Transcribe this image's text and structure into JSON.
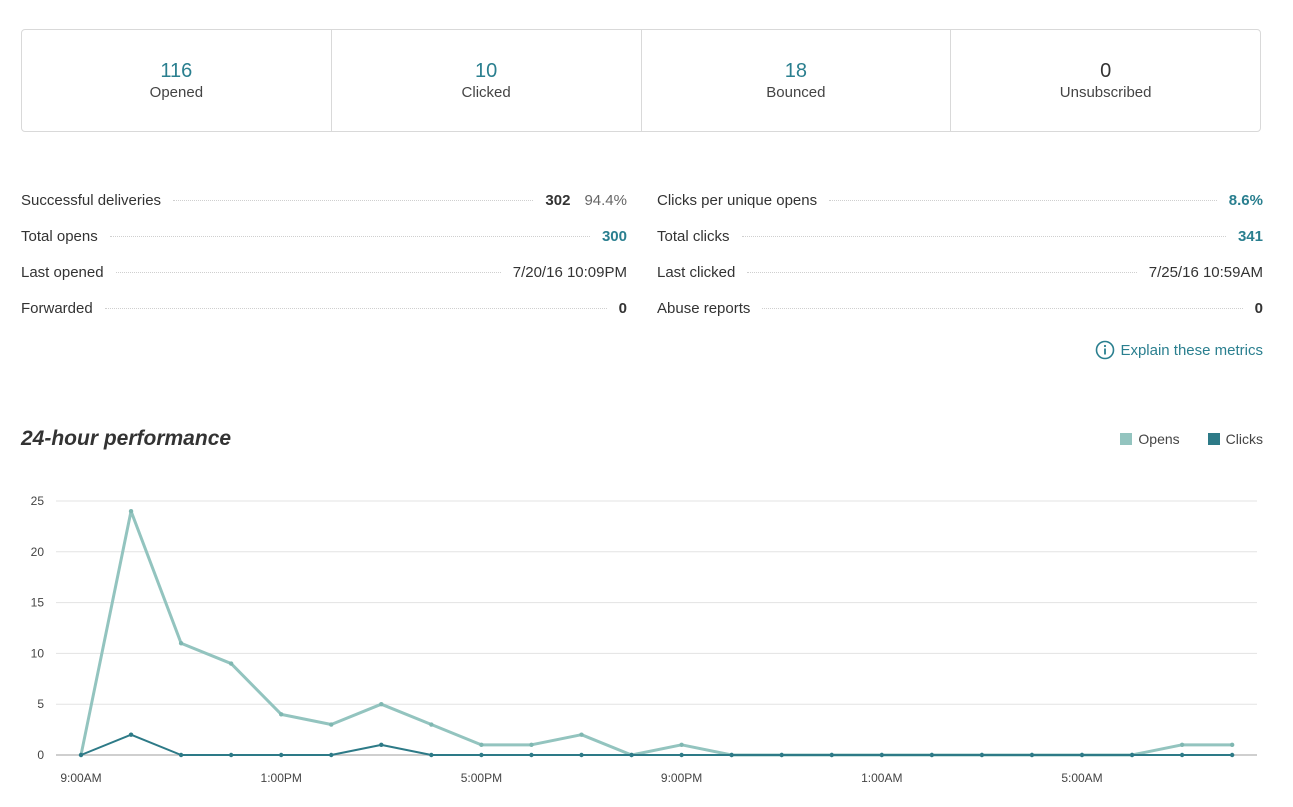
{
  "stats": [
    {
      "value": "116",
      "label": "Opened"
    },
    {
      "value": "10",
      "label": "Clicked"
    },
    {
      "value": "18",
      "label": "Bounced"
    },
    {
      "value": "0",
      "label": "Unsubscribed"
    }
  ],
  "metrics_left": [
    {
      "label": "Successful deliveries",
      "value": "302",
      "pct": "94.4%"
    },
    {
      "label": "Total opens",
      "value": "300"
    },
    {
      "label": "Last opened",
      "value": "7/20/16 10:09PM"
    },
    {
      "label": "Forwarded",
      "value": "0"
    }
  ],
  "metrics_right": [
    {
      "label": "Clicks per unique opens",
      "value": "8.6%"
    },
    {
      "label": "Total clicks",
      "value": "341"
    },
    {
      "label": "Last clicked",
      "value": "7/25/16 10:59AM"
    },
    {
      "label": "Abuse reports",
      "value": "0"
    }
  ],
  "explain_link": "Explain these metrics",
  "chart_title": "24-hour performance",
  "legend": {
    "opens": "Opens",
    "clicks": "Clicks"
  },
  "colors": {
    "accent": "#2a7f8f",
    "opens": "#93c4bf",
    "clicks": "#2d7a87"
  },
  "icons": {
    "info": "info-circle-icon"
  },
  "chart_data": {
    "type": "line",
    "x": [
      "9:00AM",
      "10:00AM",
      "11:00AM",
      "12:00PM",
      "1:00PM",
      "2:00PM",
      "3:00PM",
      "4:00PM",
      "5:00PM",
      "6:00PM",
      "7:00PM",
      "8:00PM",
      "9:00PM",
      "10:00PM",
      "11:00PM",
      "12:00AM",
      "1:00AM",
      "2:00AM",
      "3:00AM",
      "4:00AM",
      "5:00AM",
      "6:00AM",
      "7:00AM",
      "8:00AM"
    ],
    "x_tick_labels": [
      "9:00AM",
      "1:00PM",
      "5:00PM",
      "9:00PM",
      "1:00AM",
      "5:00AM"
    ],
    "series": [
      {
        "name": "Opens",
        "values": [
          0,
          24,
          11,
          9,
          4,
          3,
          5,
          3,
          1,
          1,
          2,
          0,
          1,
          0,
          0,
          0,
          0,
          0,
          0,
          0,
          0,
          0,
          1,
          1
        ]
      },
      {
        "name": "Clicks",
        "values": [
          0,
          2,
          0,
          0,
          0,
          0,
          1,
          0,
          0,
          0,
          0,
          0,
          0,
          0,
          0,
          0,
          0,
          0,
          0,
          0,
          0,
          0,
          0,
          0
        ]
      }
    ],
    "y_ticks": [
      0,
      5,
      10,
      15,
      20,
      25
    ],
    "ylim": [
      0,
      25
    ],
    "grid": true,
    "legend_position": "top-right"
  }
}
